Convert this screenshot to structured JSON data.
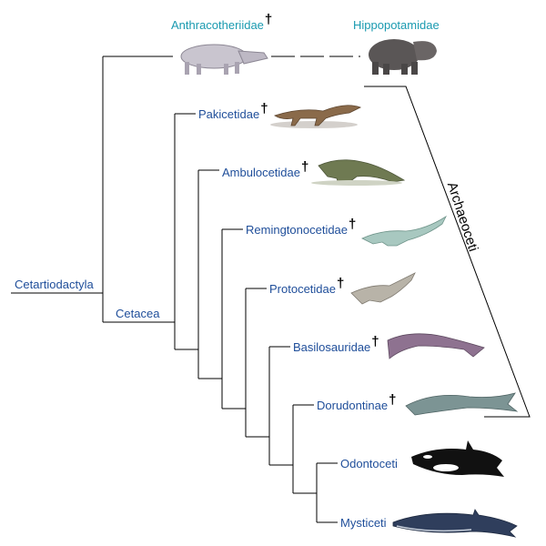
{
  "root": {
    "label": "Cetartiodactyla"
  },
  "clades": {
    "cetacea": "Cetacea",
    "archaeoceti": "Archaeoceti"
  },
  "taxa": [
    {
      "id": "anthracotheriidae",
      "label": "Anthracotheriidae",
      "extinct": true,
      "dagger": "†",
      "color": "#1a9ab0",
      "icon": "anthracothere-icon"
    },
    {
      "id": "hippopotamidae",
      "label": "Hippopotamidae",
      "extinct": false,
      "color": "#1a9ab0",
      "icon": "hippo-icon"
    },
    {
      "id": "pakicetidae",
      "label": "Pakicetidae",
      "extinct": true,
      "dagger": "†",
      "color": "#1f4e9a",
      "icon": "pakicetus-icon"
    },
    {
      "id": "ambulocetidae",
      "label": "Ambulocetidae",
      "extinct": true,
      "dagger": "†",
      "color": "#1f4e9a",
      "icon": "ambulocetus-icon"
    },
    {
      "id": "remingtonocetidae",
      "label": "Remingtonocetidae",
      "extinct": true,
      "dagger": "†",
      "color": "#1f4e9a",
      "icon": "remingtonocetus-icon"
    },
    {
      "id": "protocetidae",
      "label": "Protocetidae",
      "extinct": true,
      "dagger": "†",
      "color": "#1f4e9a",
      "icon": "protocetus-icon"
    },
    {
      "id": "basilosauridae",
      "label": "Basilosauridae",
      "extinct": true,
      "dagger": "†",
      "color": "#1f4e9a",
      "icon": "basilosaurus-icon"
    },
    {
      "id": "dorudontinae",
      "label": "Dorudontinae",
      "extinct": true,
      "dagger": "†",
      "color": "#1f4e9a",
      "icon": "dorudon-icon"
    },
    {
      "id": "odontoceti",
      "label": "Odontoceti",
      "extinct": false,
      "color": "#1f4e9a",
      "icon": "orca-icon"
    },
    {
      "id": "mysticeti",
      "label": "Mysticeti",
      "extinct": false,
      "color": "#1f4e9a",
      "icon": "baleen-whale-icon"
    }
  ]
}
